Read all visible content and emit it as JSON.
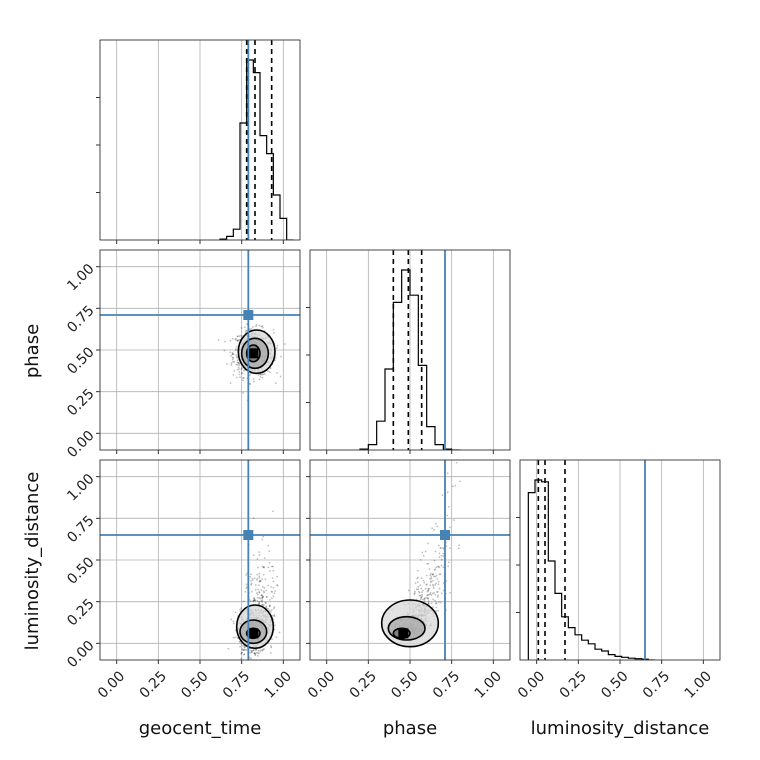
{
  "chart_data": {
    "type": "corner",
    "parameters": [
      "geocent_time",
      "phase",
      "luminosity_distance"
    ],
    "axis_labels": {
      "x": [
        "geocent_time",
        "phase",
        "luminosity_distance"
      ],
      "y": [
        "",
        "phase",
        "luminosity_distance"
      ]
    },
    "range": [
      -0.1,
      1.1
    ],
    "ticks": [
      0.0,
      0.25,
      0.5,
      0.75,
      1.0
    ],
    "tick_labels": [
      "0.00",
      "0.25",
      "0.50",
      "0.75",
      "1.00"
    ],
    "grid": true,
    "truths": {
      "geocent_time": 0.79,
      "phase": 0.71,
      "luminosity_distance": 0.65
    },
    "truth_color": "#4682b4",
    "histograms": [
      {
        "parameter": "geocent_time",
        "bin_edges": [
          0.62,
          0.66,
          0.7,
          0.74,
          0.78,
          0.82,
          0.86,
          0.9,
          0.94,
          0.98,
          1.02,
          1.06
        ],
        "values": [
          0.005,
          0.02,
          0.06,
          0.65,
          1.0,
          0.93,
          0.58,
          0.48,
          0.25,
          0.12,
          0.0
        ],
        "quantiles": [
          0.78,
          0.83,
          0.93
        ]
      },
      {
        "parameter": "phase",
        "bin_edges": [
          0.2,
          0.25,
          0.3,
          0.35,
          0.4,
          0.45,
          0.5,
          0.55,
          0.6,
          0.65,
          0.7,
          0.75,
          0.8
        ],
        "values": [
          0.005,
          0.03,
          0.16,
          0.45,
          0.82,
          1.0,
          0.86,
          0.47,
          0.13,
          0.03,
          0.005,
          0.0
        ],
        "quantiles": [
          0.4,
          0.49,
          0.57
        ]
      },
      {
        "parameter": "luminosity_distance",
        "bin_edges": [
          -0.05,
          -0.01,
          0.03,
          0.07,
          0.11,
          0.15,
          0.19,
          0.23,
          0.27,
          0.31,
          0.35,
          0.39,
          0.43,
          0.47,
          0.51,
          0.55,
          0.59,
          0.63,
          0.67,
          0.71
        ],
        "values": [
          0.93,
          1.0,
          0.99,
          0.55,
          0.37,
          0.24,
          0.18,
          0.14,
          0.11,
          0.09,
          0.06,
          0.05,
          0.03,
          0.02,
          0.015,
          0.01,
          0.007,
          0.004,
          0.0
        ],
        "quantiles": [
          0.01,
          0.05,
          0.17
        ]
      }
    ],
    "scatter_panels": [
      {
        "x_param": "geocent_time",
        "y_param": "phase",
        "center": [
          0.82,
          0.48
        ],
        "spread": [
          0.06,
          0.07
        ],
        "correlation": 0.0,
        "contours": [
          {
            "level": "inner",
            "cx": 0.82,
            "cy": 0.48,
            "rx": 0.04,
            "ry": 0.05
          },
          {
            "level": "middle",
            "cx": 0.83,
            "cy": 0.48,
            "rx": 0.08,
            "ry": 0.09
          },
          {
            "level": "outer",
            "cx": 0.84,
            "cy": 0.49,
            "rx": 0.11,
            "ry": 0.13
          }
        ]
      },
      {
        "x_param": "geocent_time",
        "y_param": "luminosity_distance",
        "center": [
          0.82,
          0.06
        ],
        "spread": [
          0.05,
          0.08
        ],
        "correlation": 0.0,
        "contours": [
          {
            "level": "inner",
            "cx": 0.82,
            "cy": 0.06,
            "rx": 0.04,
            "ry": 0.03
          },
          {
            "level": "middle",
            "cx": 0.82,
            "cy": 0.07,
            "rx": 0.08,
            "ry": 0.07
          },
          {
            "level": "outer",
            "cx": 0.83,
            "cy": 0.1,
            "rx": 0.11,
            "ry": 0.13
          }
        ]
      },
      {
        "x_param": "phase",
        "y_param": "luminosity_distance",
        "center": [
          0.46,
          0.06
        ],
        "spread": [
          0.08,
          0.1
        ],
        "correlation": 0.8,
        "contours": [
          {
            "level": "inner",
            "cx": 0.45,
            "cy": 0.06,
            "rx": 0.05,
            "ry": 0.03
          },
          {
            "level": "middle",
            "cx": 0.48,
            "cy": 0.09,
            "rx": 0.11,
            "ry": 0.07
          },
          {
            "level": "outer",
            "cx": 0.5,
            "cy": 0.12,
            "rx": 0.17,
            "ry": 0.14
          }
        ]
      }
    ]
  }
}
